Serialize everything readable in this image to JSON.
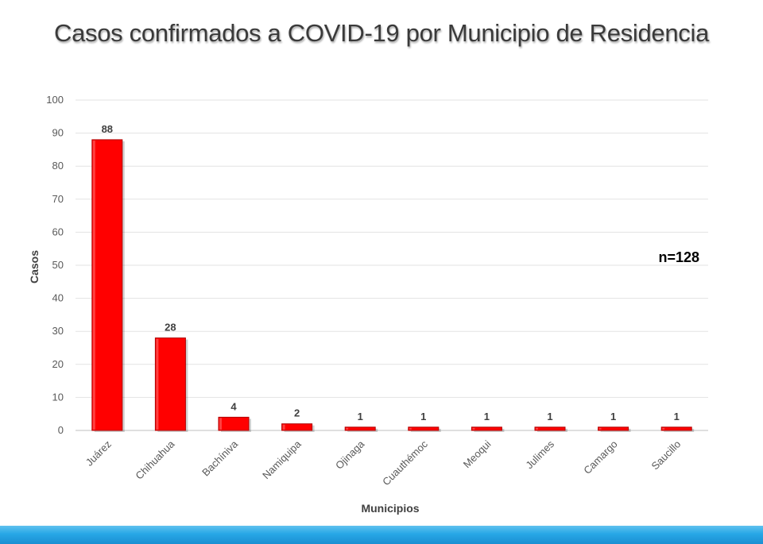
{
  "slide": {
    "title": "Casos confirmados a COVID-19 por Municipio de Residencia"
  },
  "colors": {
    "bar": "#ff0000",
    "bar_edge": "#b00000",
    "footer": "#27a7e6"
  },
  "chart_data": {
    "type": "bar",
    "title": "",
    "xlabel": "Municipios",
    "ylabel": "Casos",
    "categories": [
      "Juárez",
      "Chihuahua",
      "Bachíniva",
      "Namiquipa",
      "Ojinaga",
      "Cuauthémoc",
      "Meoqui",
      "Julimes",
      "Camargo",
      "Saucillo"
    ],
    "values": [
      88,
      28,
      4,
      2,
      1,
      1,
      1,
      1,
      1,
      1
    ],
    "ylim": [
      0,
      100
    ],
    "yticks": [
      0,
      10,
      20,
      30,
      40,
      50,
      60,
      70,
      80,
      90,
      100
    ],
    "grid": true,
    "legend": "none",
    "annotation": "n=128"
  }
}
